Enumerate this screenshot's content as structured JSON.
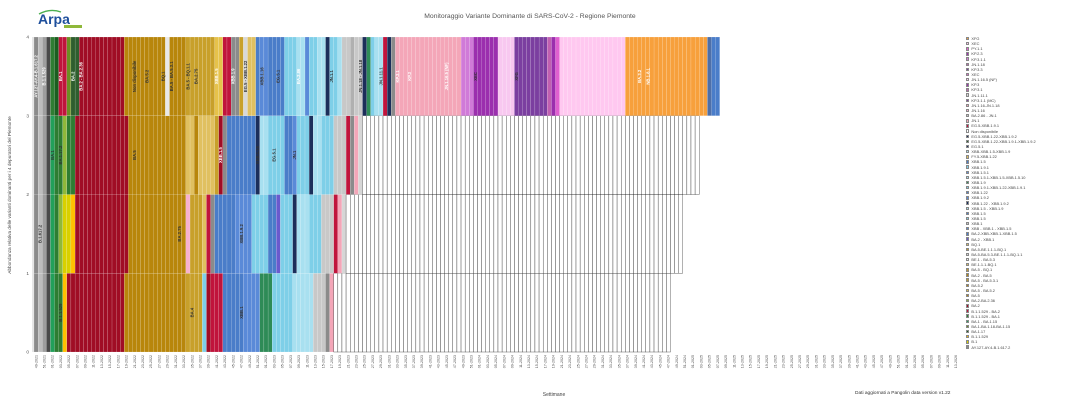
{
  "header": {
    "logo_text": "Arpa",
    "title": "Monitoraggio Variante Dominante di SARS-CoV-2 - Regione Piemonte",
    "footnote": "Dati aggiornati a Pangolin data version  v1.22"
  },
  "chart_data": {
    "type": "bar",
    "stacked": true,
    "title": "Monitoraggio Variante Dominante di SARS-CoV-2 - Regione Piemonte",
    "xlabel": "Settimane",
    "ylabel": "Abbondanza relativa delle varianti dominanti per i 4 depuratori del Piemonte",
    "ylim": [
      0,
      4
    ],
    "yticks": [
      0,
      1,
      2,
      3,
      4
    ],
    "grid": false,
    "legend_position": "right",
    "categories": [
      "49-2021",
      "51-2021",
      "01-2022",
      "03-2022",
      "05-2022",
      "07-2022",
      "09-2022",
      "11-2022",
      "13-2022",
      "15-2022",
      "17-2022",
      "19-2022",
      "21-2022",
      "23-2022",
      "25-2022",
      "27-2022",
      "29-2022",
      "31-2022",
      "33-2022",
      "35-2022",
      "37-2022",
      "39-2022",
      "41-2022",
      "43-2022",
      "45-2022",
      "47-2022",
      "49-2022",
      "51-2022",
      "01-2023",
      "03-2023",
      "05-2023",
      "07-2023",
      "09-2023",
      "11-2023",
      "13-2023",
      "15-2023",
      "17-2023",
      "19-2023",
      "21-2023",
      "23-2023",
      "25-2023",
      "27-2023",
      "29-2023",
      "31-2023",
      "33-2023",
      "35-2023",
      "37-2023",
      "39-2023",
      "41-2023",
      "43-2023",
      "45-2023",
      "47-2023",
      "49-2023",
      "51-2023",
      "01-2024",
      "03-2024",
      "05-2024",
      "07-2024",
      "09-2024",
      "11-2024",
      "13-2024",
      "15-2024",
      "17-2024",
      "19-2024",
      "21-2024",
      "23-2024",
      "25-2024",
      "27-2024",
      "29-2024",
      "31-2024",
      "33-2024",
      "35-2024",
      "37-2024",
      "39-2024",
      "41-2024",
      "43-2024",
      "45-2024",
      "47-2024",
      "49-2024",
      "51-2024",
      "01-2025",
      "03-2025",
      "05-2025",
      "07-2025",
      "09-2025",
      "11-2025",
      "13-2025",
      "15-2025",
      "17-2025",
      "19-2025",
      "21-2025",
      "23-2025",
      "25-2025",
      "27-2025",
      "29-2025",
      "31-2025",
      "33-2025",
      "35-2025",
      "37-2025",
      "39-2025",
      "41-2025",
      "43-2025",
      "45-2025",
      "47-2025",
      "49-2025",
      "51-2025",
      "01-2026",
      "03-2026",
      "05-2026",
      "07-2026",
      "09-2026",
      "11-2026",
      "13-2026"
    ],
    "bands": {
      "top": [
        [
          "#8B8B8B",
          1
        ],
        [
          "#BDBDBD",
          1
        ],
        [
          "#9E9E9E",
          1
        ],
        [
          "#4A4A4A",
          1
        ],
        [
          "#2E7D32",
          1
        ],
        [
          "#1B5E20",
          1
        ],
        [
          "#C0143C",
          2
        ],
        [
          "#6B8E23",
          1
        ],
        [
          "#2E5E2E",
          2
        ],
        [
          "#A00D25",
          11
        ],
        [
          "#B8860B",
          10
        ],
        [
          "#E8E8E8",
          1
        ],
        [
          "#B8860B",
          4
        ],
        [
          "#C8A02A",
          7
        ],
        [
          "#E6C24A",
          2
        ],
        [
          "#C0143C",
          2
        ],
        [
          "#8B8B8B",
          2
        ],
        [
          "#C8A02A",
          1
        ],
        [
          "#D8D8D8",
          1
        ],
        [
          "#E0C060",
          2
        ],
        [
          "#4A7DC9",
          1
        ],
        [
          "#5A8AD8",
          2
        ],
        [
          "#4A7DC9",
          4
        ],
        [
          "#7ECFE8",
          3
        ],
        [
          "#A8E0F0",
          2
        ],
        [
          "#5A8AD8",
          1
        ],
        [
          "#7ECFE8",
          2
        ],
        [
          "#A8E0F0",
          2
        ],
        [
          "#1C2E5A",
          1
        ],
        [
          "#7ECFE8",
          2
        ],
        [
          "#A8E0F0",
          1
        ],
        [
          "#C8C8C8",
          2
        ],
        [
          "#B0B0B0",
          1
        ],
        [
          "#C8C8C8",
          2
        ],
        [
          "#1C2E5A",
          1
        ],
        [
          "#2E8B57",
          1
        ],
        [
          "#7ECFE8",
          1
        ],
        [
          "#A8E0F0",
          2
        ],
        [
          "#C0143C",
          1
        ],
        [
          "#1C2E5A",
          1
        ],
        [
          "#8B8B8B",
          1
        ],
        [
          "#F4A6B8",
          10
        ],
        [
          "#F4A6B8",
          6
        ],
        [
          "#D07AD8",
          3
        ],
        [
          "#9B2FAE",
          6
        ],
        [
          "#F8C8F0",
          4
        ],
        [
          "#7B3FA0",
          8
        ],
        [
          "#C060B0",
          1
        ],
        [
          "#9B2FAE",
          1
        ],
        [
          "#E060D0",
          1
        ],
        [
          "#FFC8F0",
          16
        ],
        [
          "#F7A03C",
          20
        ],
        [
          "#4E6FA8",
          1
        ],
        [
          "#4A7DC9",
          2
        ]
      ],
      "mid": [
        [
          "#8B8B8B",
          1
        ],
        [
          "#BDBDBD",
          1
        ],
        [
          "#9E9E9E",
          1
        ],
        [
          "#4A4A4A",
          1
        ],
        [
          "#22A05A",
          1
        ],
        [
          "#2E7D32",
          2
        ],
        [
          "#8FB83A",
          1
        ],
        [
          "#2E7D32",
          2
        ],
        [
          "#A00D25",
          13
        ],
        [
          "#B8860B",
          14
        ],
        [
          "#E0C060",
          2
        ],
        [
          "#B8860B",
          1
        ],
        [
          "#E0C060",
          4
        ],
        [
          "#C8A02A",
          1
        ],
        [
          "#A00D25",
          1
        ],
        [
          "#8B8B8B",
          1
        ],
        [
          "#4A7DC9",
          7
        ],
        [
          "#1C2E5A",
          1
        ],
        [
          "#A8E0F0",
          2
        ],
        [
          "#7ECFE8",
          4
        ],
        [
          "#4A7DC9",
          2
        ],
        [
          "#5A8AD8",
          1
        ],
        [
          "#7ECFE8",
          3
        ],
        [
          "#1C2E5A",
          1
        ],
        [
          "#A8E0F0",
          2
        ],
        [
          "#7ECFE8",
          3
        ],
        [
          "#C8C8C8",
          3
        ],
        [
          "#C0143C",
          1
        ],
        [
          "#8B8B8B",
          1
        ],
        [
          "#F4A6B8",
          1
        ],
        [
          "#D6D6D6",
          1
        ],
        [
          "#FFFFFF",
          82
        ]
      ],
      "low": [
        [
          "#8B8B8B",
          1
        ],
        [
          "#BDBDBD",
          1
        ],
        [
          "#9E9E9E",
          1
        ],
        [
          "#4A4A4A",
          1
        ],
        [
          "#22A05A",
          1
        ],
        [
          "#2E7D32",
          1
        ],
        [
          "#8FB83A",
          1
        ],
        [
          "#D8D000",
          2
        ],
        [
          "#FFC000",
          1
        ],
        [
          "#A00D25",
          13
        ],
        [
          "#B8860B",
          14
        ],
        [
          "#F7B2D0",
          1
        ],
        [
          "#C8A02A",
          3
        ],
        [
          "#E0C060",
          1
        ],
        [
          "#C0143C",
          1
        ],
        [
          "#8B8B8B",
          1
        ],
        [
          "#4A7DC9",
          5
        ],
        [
          "#5A8AD8",
          4
        ],
        [
          "#7ECFE8",
          4
        ],
        [
          "#4A7DC9",
          2
        ],
        [
          "#6A5ACD",
          1
        ],
        [
          "#7ECFE8",
          3
        ],
        [
          "#1C2E5A",
          1
        ],
        [
          "#A8E0F0",
          3
        ],
        [
          "#7ECFE8",
          3
        ],
        [
          "#C8C8C8",
          3
        ],
        [
          "#C0143C",
          1
        ],
        [
          "#F4A6B8",
          1
        ],
        [
          "#D6D6D6",
          1
        ],
        [
          "#FFFFFF",
          82
        ]
      ],
      "bottom": [
        [
          "#8B8B8B",
          1
        ],
        [
          "#BDBDBD",
          1
        ],
        [
          "#9E9E9E",
          1
        ],
        [
          "#4A4A4A",
          1
        ],
        [
          "#22A05A",
          1
        ],
        [
          "#2E7D32",
          2
        ],
        [
          "#FFC000",
          1
        ],
        [
          "#A00D25",
          14
        ],
        [
          "#B8860B",
          15
        ],
        [
          "#C8A02A",
          4
        ],
        [
          "#7ECFE8",
          1
        ],
        [
          "#A00D25",
          1
        ],
        [
          "#C0143C",
          3
        ],
        [
          "#4A7DC9",
          5
        ],
        [
          "#5A8AD8",
          4
        ],
        [
          "#2E8B57",
          3
        ],
        [
          "#7ECFE8",
          5
        ],
        [
          "#A8E0F0",
          5
        ],
        [
          "#C8C8C8",
          3
        ],
        [
          "#8B8B8B",
          1
        ],
        [
          "#F4A6B8",
          1
        ],
        [
          "#FFFFFF",
          82
        ]
      ]
    },
    "bar_labels": [
      {
        "text": "AY.127-AY.4-B.1.617.2",
        "bar": 0.5,
        "band": "top",
        "color": "#ffffff"
      },
      {
        "text": "B.1.1.529",
        "bar": 2.5,
        "band": "top",
        "color": "#ffffff"
      },
      {
        "text": "BA.1",
        "bar": 6.5,
        "band": "top",
        "color": "#ffffff"
      },
      {
        "text": "BA.2",
        "bar": 9.5,
        "band": "top",
        "color": "#ffffff"
      },
      {
        "text": "BA.2 - BA.2.36",
        "bar": 11.5,
        "band": "top",
        "color": "#ffffff"
      },
      {
        "text": "Non disponibile",
        "bar": 24.5,
        "band": "top",
        "color": "#333333"
      },
      {
        "text": "BA.5.2",
        "bar": 27.5,
        "band": "top",
        "color": "#333333"
      },
      {
        "text": "BQ.1",
        "bar": 31.5,
        "band": "top",
        "color": "#333333"
      },
      {
        "text": "BA.5 - BA.5.3.1",
        "bar": 33.5,
        "band": "top",
        "color": "#333333"
      },
      {
        "text": "BA.5 - BQ.1.1",
        "bar": 37.5,
        "band": "top",
        "color": "#333333"
      },
      {
        "text": "BA.2.75",
        "bar": 39.5,
        "band": "top",
        "color": "#333333"
      },
      {
        "text": "XBB.1.5",
        "bar": 44.5,
        "band": "top",
        "color": "#ffffff"
      },
      {
        "text": "XBB.1.9",
        "bar": 48.5,
        "band": "top",
        "color": "#ffffff"
      },
      {
        "text": "EG.5 - XBB.1.22",
        "bar": 51.5,
        "band": "top",
        "color": "#333333"
      },
      {
        "text": "XBB.1.16",
        "bar": 55.5,
        "band": "top",
        "color": "#333333"
      },
      {
        "text": "EG.5.1",
        "bar": 59.5,
        "band": "top",
        "color": "#333333"
      },
      {
        "text": "BA.2.86",
        "bar": 64.5,
        "band": "top",
        "color": "#ffffff"
      },
      {
        "text": "JN.1.1",
        "bar": 72.5,
        "band": "top",
        "color": "#333333"
      },
      {
        "text": "JN.1.18 - JN.1.18",
        "bar": 79.5,
        "band": "top",
        "color": "#333333"
      },
      {
        "text": "JN.1.11.1",
        "bar": 84.5,
        "band": "top",
        "color": "#333333"
      },
      {
        "text": "KP.3.1",
        "bar": 88.5,
        "band": "top",
        "color": "#ffffff"
      },
      {
        "text": "KP.3",
        "bar": 91.5,
        "band": "top",
        "color": "#ffffff"
      },
      {
        "text": "JN.1.16.5 (NF)",
        "bar": 100.5,
        "band": "top",
        "color": "#ffffff"
      },
      {
        "text": "XEC",
        "bar": 107.5,
        "band": "top",
        "color": "#333333"
      },
      {
        "text": "XFG",
        "bar": 117.5,
        "band": "top",
        "color": "#333333"
      },
      {
        "text": "BA.3.2",
        "bar": 147.5,
        "band": "top",
        "color": "#ffffff"
      },
      {
        "text": "NB.1.8.1",
        "bar": 149.5,
        "band": "top",
        "color": "#ffffff"
      },
      {
        "text": "BA.1",
        "bar": 4.5,
        "band": "mid",
        "color": "#333333"
      },
      {
        "text": "BA.1.17.2",
        "bar": 6.5,
        "band": "mid",
        "color": "#333333"
      },
      {
        "text": "BA.5",
        "bar": 24.5,
        "band": "mid",
        "color": "#333333"
      },
      {
        "text": "XBB.1.5",
        "bar": 45.5,
        "band": "mid",
        "color": "#ffffff"
      },
      {
        "text": "XBB.1.16",
        "bar": 54.5,
        "band": "mid",
        "color": "#333333"
      },
      {
        "text": "EG.5.1",
        "bar": 58.5,
        "band": "mid",
        "color": "#333333"
      },
      {
        "text": "JN.1",
        "bar": 63.5,
        "band": "mid",
        "color": "#333333"
      },
      {
        "text": "B.1.617.2",
        "bar": 1.5,
        "band": "low",
        "color": "#333333"
      },
      {
        "text": "BA.2.75",
        "bar": 35.5,
        "band": "low",
        "color": "#333333"
      },
      {
        "text": "XBB.1.9.2",
        "bar": 50.5,
        "band": "low",
        "color": "#333333"
      },
      {
        "text": "B.1.1.529",
        "bar": 6.5,
        "band": "bottom",
        "color": "#333333"
      },
      {
        "text": "XBB.1",
        "bar": 50.5,
        "band": "bottom",
        "color": "#333333"
      },
      {
        "text": "BA.4",
        "bar": 38.5,
        "band": "bottom",
        "color": "#333333"
      }
    ],
    "legend": [
      {
        "label": "XFG",
        "color": "#F7A03C"
      },
      {
        "label": "XEC",
        "color": "#FFC8F0"
      },
      {
        "label": "PY.1.1",
        "color": "#E060D0"
      },
      {
        "label": "KP.2.3",
        "color": "#9B2FAE"
      },
      {
        "label": "KP.3.1.1",
        "color": "#D07AD8"
      },
      {
        "label": "JN.1.18",
        "color": "#C060B0"
      },
      {
        "label": "KP.3.3",
        "color": "#7B3FA0"
      },
      {
        "label": "XEC",
        "color": "#E060D0"
      },
      {
        "label": "JN.1.16.5 (NF)",
        "color": "#F8C8F0"
      },
      {
        "label": "KP.3",
        "color": "#9B2FAE"
      },
      {
        "label": "KP.3.1",
        "color": "#C060B0"
      },
      {
        "label": "JN.1.11.1",
        "color": "#D6D6D6"
      },
      {
        "label": "KP.3.1.1 (MC)",
        "color": "#7B3FA0"
      },
      {
        "label": "JN.1.16-JN.1.18",
        "color": "#F4A6B8"
      },
      {
        "label": "JN.1.16",
        "color": "#F7B2D0"
      },
      {
        "label": "BA.2.86 - JN.1",
        "color": "#C8C8C8"
      },
      {
        "label": "JN.1",
        "color": "#F4A6B8"
      },
      {
        "label": "EG.5-XBB.1.9.1",
        "color": "#C0143C"
      },
      {
        "label": "Non disponibile",
        "color": "#FFFFFF"
      },
      {
        "label": "EG.5-XBB.1.22-XBB.1.9.2",
        "color": "#1C2E5A"
      },
      {
        "label": "EG.5-XBB.1.22-XBB.1.9.1-XBB.1.9.2",
        "color": "#2E5E2E"
      },
      {
        "label": "EG.5.1",
        "color": "#1C2E5A"
      },
      {
        "label": "XBB-XBB.1.5-XBB.1.9",
        "color": "#A8E0F0"
      },
      {
        "label": "FY.5-XBB.1.22",
        "color": "#E0C060"
      },
      {
        "label": "XBB.1.5",
        "color": "#4A7DC9"
      },
      {
        "label": "XBB.1.9.1",
        "color": "#7ECFE8"
      },
      {
        "label": "XBB.1.5.1",
        "color": "#5A8AD8"
      },
      {
        "label": "XBB.1.5.1-XBB.1.5-XBB.1.5.10",
        "color": "#A8E0F0"
      },
      {
        "label": "XBB.1.9",
        "color": "#2E8B57"
      },
      {
        "label": "XBB.1.9.1-XBB.1.22-XBB.1.9.1",
        "color": "#7ECFE8"
      },
      {
        "label": "XBB.1.22",
        "color": "#4A7DC9"
      },
      {
        "label": "XBB.1.9.2",
        "color": "#5A8AD8"
      },
      {
        "label": "XBB.1.22 - XBB.1.9.2",
        "color": "#1C2E5A"
      },
      {
        "label": "XBB.1.5 - XBB.1.9",
        "color": "#A8E0F0"
      },
      {
        "label": "XBB.1.5",
        "color": "#4A7DC9"
      },
      {
        "label": "XBB.1.5",
        "color": "#7ECFE8"
      },
      {
        "label": "XBB.1",
        "color": "#C8C8C8"
      },
      {
        "label": "XBB - XBB.1 - XBB.1.5",
        "color": "#5A8AD8"
      },
      {
        "label": "BA.2-XBB-XBB.1-XBB.1.5",
        "color": "#4A7DC9"
      },
      {
        "label": "BA.2 - XBB.1",
        "color": "#6A5ACD"
      },
      {
        "label": "BQ.1",
        "color": "#E0C060"
      },
      {
        "label": "BA.5-BE.1.1.1-BQ.1",
        "color": "#C8A02A"
      },
      {
        "label": "BA.5-BA.5.3-BE.1.1.1-BQ.1.1",
        "color": "#D8D8D8"
      },
      {
        "label": "BE.1 - BA.5.3",
        "color": "#E8E8E8"
      },
      {
        "label": "BE.1.1.1-BQ.1",
        "color": "#E0C060"
      },
      {
        "label": "BA.5 - BQ.1",
        "color": "#C8A02A"
      },
      {
        "label": "BA.2 - BA.5",
        "color": "#B8860B"
      },
      {
        "label": "BA.5 - BA.5.3.1",
        "color": "#C8A02A"
      },
      {
        "label": "BA.5.2",
        "color": "#B8860B"
      },
      {
        "label": "BA.5 - BA.5.2",
        "color": "#E6C24A"
      },
      {
        "label": "BA.5",
        "color": "#B8860B"
      },
      {
        "label": "BA.2-BA.2.36",
        "color": "#8FB83A"
      },
      {
        "label": "BA.2",
        "color": "#A00D25"
      },
      {
        "label": "B.1.1.529 - BA.2",
        "color": "#C0143C"
      },
      {
        "label": "B.1.1.529 - BA.1",
        "color": "#2E7D32"
      },
      {
        "label": "BA.1 - BA.1.15",
        "color": "#22A05A"
      },
      {
        "label": "BA.1-BA.1.18-BA.1.15",
        "color": "#6B8E23"
      },
      {
        "label": "BA.1.17",
        "color": "#1B5E20"
      },
      {
        "label": "B.1.1.529",
        "color": "#FFC000"
      },
      {
        "label": "B.1",
        "color": "#D8D000"
      },
      {
        "label": "AY.127-AY.4-B.1.617.2",
        "color": "#8B8B8B"
      }
    ]
  }
}
